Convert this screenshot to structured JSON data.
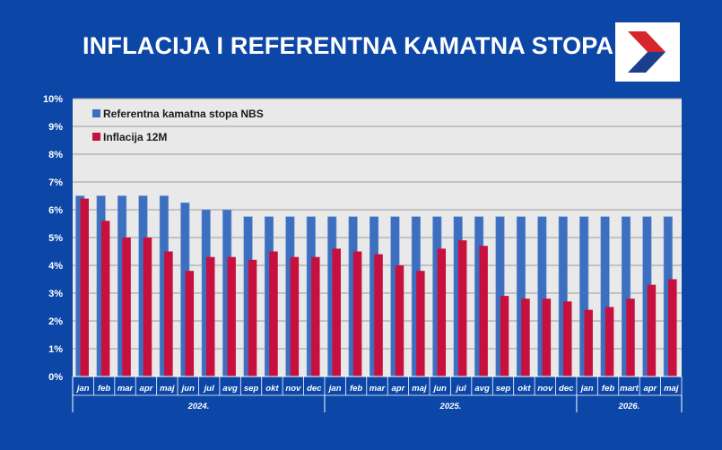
{
  "title": "INFLACIJA I REFERENTNA KAMATNA STOPA",
  "logo": {
    "icon": "nbs-logo-icon",
    "colors": [
      "#d7262b",
      "#1b3f8f",
      "#ffffff"
    ]
  },
  "colors": {
    "background": "#0c47a8",
    "plot_area": "#e9e9e9",
    "series_rate": "#3c6fbf",
    "series_inflation": "#c8103e"
  },
  "chart_data": {
    "type": "bar",
    "categories": [
      "jan",
      "feb",
      "mar",
      "apr",
      "maj",
      "jun",
      "jul",
      "avg",
      "sep",
      "okt",
      "nov",
      "dec",
      "jan",
      "feb",
      "mar",
      "apr",
      "maj",
      "jun",
      "jul",
      "avg",
      "sep",
      "okt",
      "nov",
      "dec",
      "jan",
      "feb",
      "mart",
      "apr",
      "maj"
    ],
    "groups": [
      {
        "label": "2024.",
        "count": 12
      },
      {
        "label": "2025.",
        "count": 12
      },
      {
        "label": "2026.",
        "count": 5
      }
    ],
    "series": [
      {
        "name": "Referentna kamatna stopa NBS",
        "values": [
          6.5,
          6.5,
          6.5,
          6.5,
          6.5,
          6.25,
          6.0,
          6.0,
          5.75,
          5.75,
          5.75,
          5.75,
          5.75,
          5.75,
          5.75,
          5.75,
          5.75,
          5.75,
          5.75,
          5.75,
          5.75,
          5.75,
          5.75,
          5.75,
          5.75,
          5.75,
          5.75,
          5.75,
          5.75
        ]
      },
      {
        "name": "Inflacija 12M",
        "values": [
          6.4,
          5.6,
          5.0,
          5.0,
          4.5,
          3.8,
          4.3,
          4.3,
          4.2,
          4.5,
          4.3,
          4.3,
          4.6,
          4.5,
          4.4,
          4.0,
          3.8,
          4.6,
          4.9,
          4.7,
          2.9,
          2.8,
          2.8,
          2.7,
          2.4,
          2.5,
          2.8,
          3.3,
          3.5
        ]
      }
    ],
    "y_ticks": [
      "0%",
      "1%",
      "2%",
      "3%",
      "4%",
      "5%",
      "6%",
      "7%",
      "8%",
      "9%",
      "10%"
    ],
    "ylim": [
      0,
      10
    ],
    "grid": true,
    "legend_position": "top-left"
  }
}
